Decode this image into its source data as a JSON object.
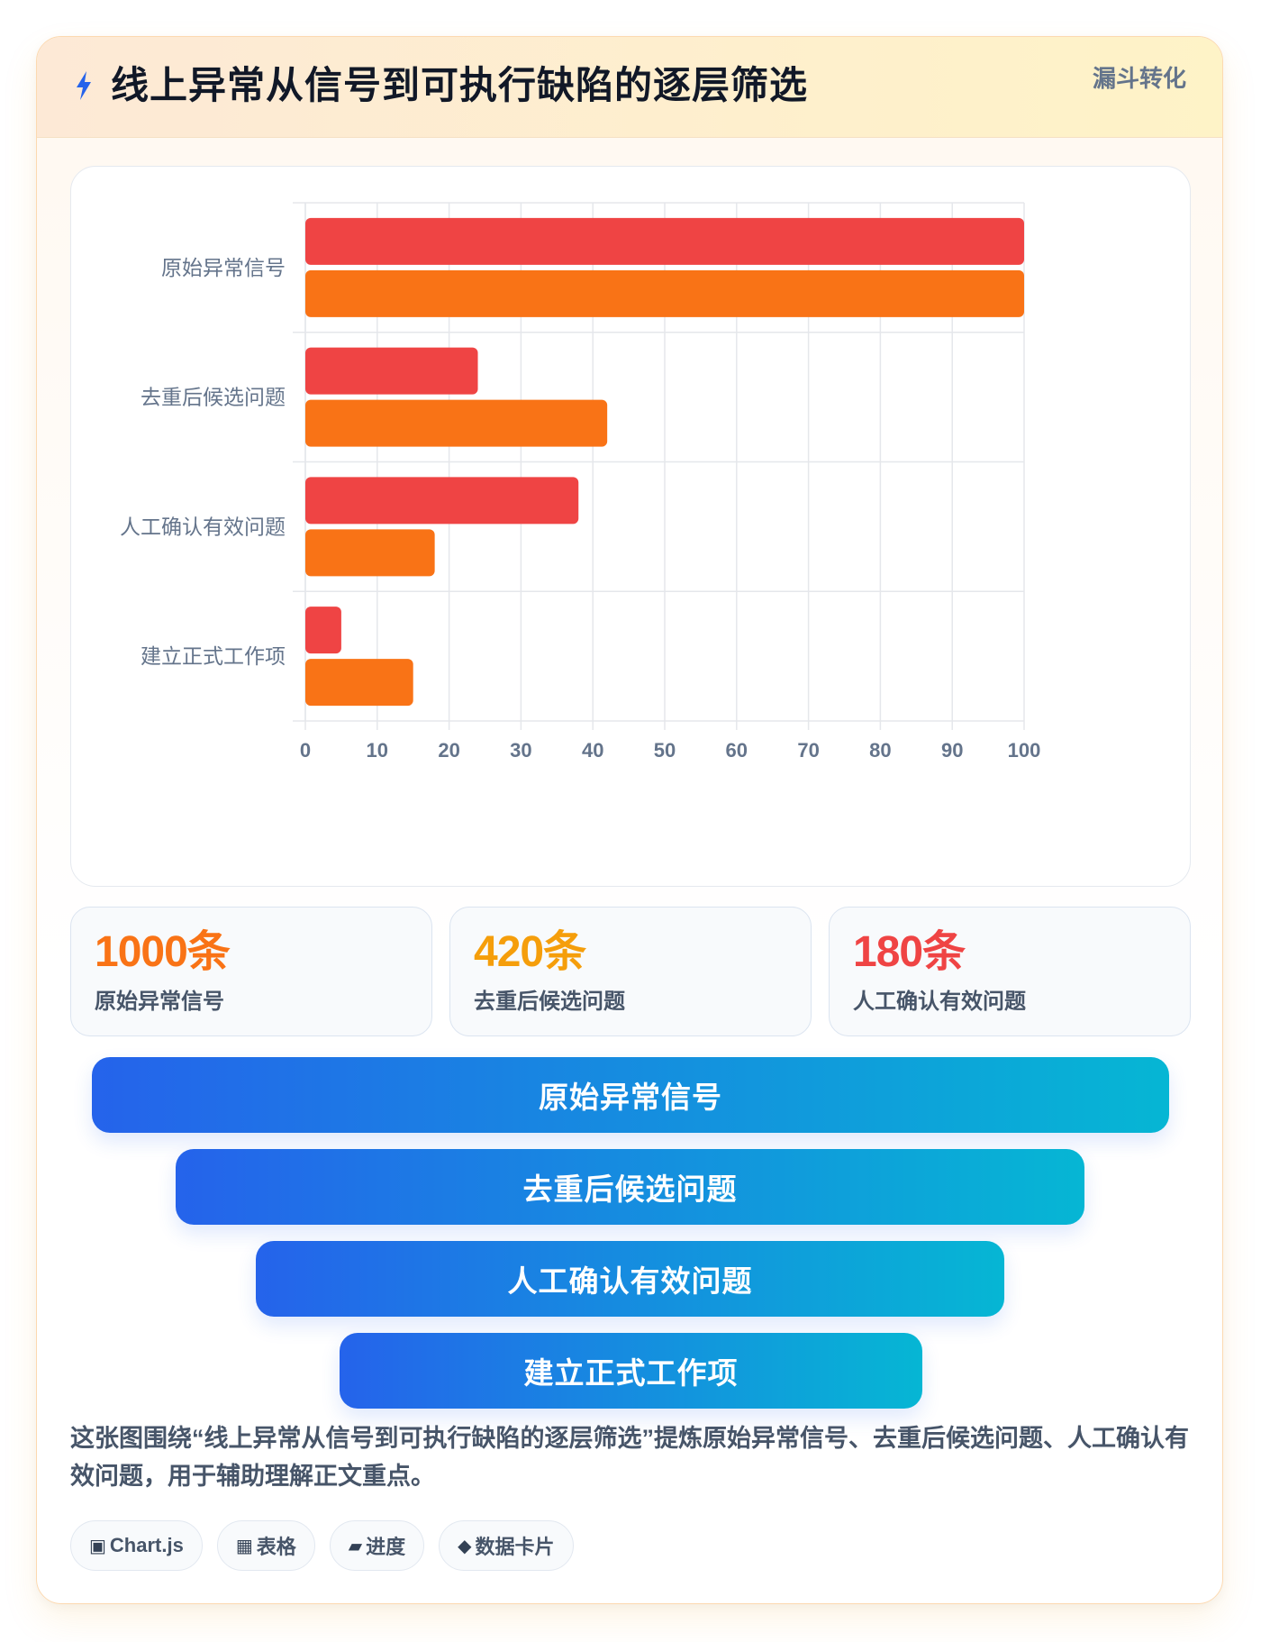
{
  "header": {
    "title": "线上异常从信号到可执行缺陷的逐层筛选",
    "tag": "漏斗转化",
    "icon": "lightning-icon"
  },
  "chart_data": {
    "type": "bar",
    "orientation": "horizontal",
    "categories": [
      "原始异常信号",
      "去重后候选问题",
      "人工确认有效问题",
      "建立正式工作项"
    ],
    "series": [
      {
        "color": "#ef4444",
        "values": [
          100,
          24,
          38,
          5
        ]
      },
      {
        "color": "#f97316",
        "values": [
          100,
          42,
          18,
          15
        ]
      }
    ],
    "xlim": [
      0,
      100
    ],
    "xticks": [
      "0",
      "10",
      "20",
      "30",
      "40",
      "50",
      "60",
      "70",
      "80",
      "90",
      "100"
    ],
    "grid": true,
    "legend": "none"
  },
  "stats": [
    {
      "value": "1000条",
      "label": "原始异常信号",
      "color": "#f97316"
    },
    {
      "value": "420条",
      "label": "去重后候选问题",
      "color": "#f59e0b"
    },
    {
      "value": "180条",
      "label": "人工确认有效问题",
      "color": "#ef4444"
    }
  ],
  "funnel": {
    "stages": [
      "原始异常信号",
      "去重后候选问题",
      "人工确认有效问题",
      "建立正式工作项"
    ]
  },
  "description": "这张图围绕“线上异常从信号到可执行缺陷的逐层筛选”提炼原始异常信号、去重后候选问题、人工确认有效问题，用于辅助理解正文重点。",
  "chips": [
    {
      "icon": "▣",
      "icon_name": "chart-icon",
      "label": "Chart.js"
    },
    {
      "icon": "▦",
      "icon_name": "table-icon",
      "label": "表格"
    },
    {
      "icon": "▰",
      "icon_name": "progress-icon",
      "label": "进度"
    },
    {
      "icon": "◆",
      "icon_name": "data-card-icon",
      "label": "数据卡片"
    }
  ]
}
